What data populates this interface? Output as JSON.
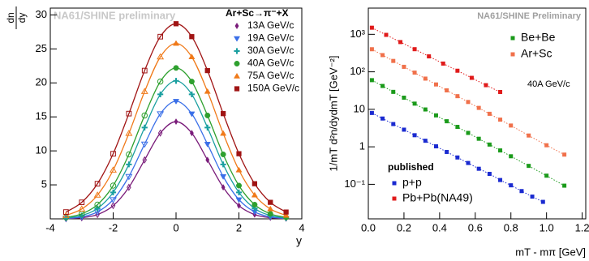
{
  "chart_data": [
    {
      "type": "line",
      "watermark": "NA61/SHINE preliminary",
      "legend_title": "Ar+Sc→π⁻+X",
      "y_label_top": "dn",
      "y_label_bottom": "dy",
      "x_label": "y",
      "x": [
        -3.5,
        -3,
        -2.5,
        -2,
        -1.5,
        -1,
        -0.5,
        0,
        0.5,
        1,
        1.5,
        2,
        2.5,
        3,
        3.5
      ],
      "xlim": [
        -4,
        4
      ],
      "xticks": [
        -4,
        -2,
        0,
        2,
        4
      ],
      "ylim": [
        0,
        31
      ],
      "yticks": [
        5,
        10,
        15,
        20,
        25,
        30
      ],
      "hollow_below_x": 0,
      "series": [
        {
          "name": "13A GeV/c",
          "color": "#7a1c7a",
          "marker": "diamond",
          "values": [
            0.03,
            0.16,
            0.63,
            1.94,
            4.64,
            8.67,
            12.62,
            14.3,
            12.62,
            8.67,
            4.64,
            1.94,
            0.63,
            0.16,
            0.03
          ]
        },
        {
          "name": "19A GeV/c",
          "color": "#3a6fe8",
          "marker": "tri-down",
          "values": [
            0.07,
            0.29,
            1.02,
            2.82,
            6.23,
            10.99,
            15.45,
            17.3,
            15.45,
            10.99,
            6.23,
            2.82,
            1.02,
            0.29,
            0.07
          ]
        },
        {
          "name": "30A GeV/c",
          "color": "#1a9fa0",
          "marker": "cross",
          "values": [
            0.13,
            0.49,
            1.53,
            3.89,
            8.01,
            13.43,
            18.31,
            20.3,
            18.31,
            13.43,
            8.01,
            3.89,
            1.53,
            0.49,
            0.13
          ]
        },
        {
          "name": "40A GeV/c",
          "color": "#2ea02e",
          "marker": "circle",
          "values": [
            0.22,
            0.74,
            2.09,
            4.89,
            9.48,
            15.21,
            20.2,
            22.2,
            20.2,
            15.21,
            9.48,
            4.89,
            2.09,
            0.74,
            0.22
          ]
        },
        {
          "name": "75A GeV/c",
          "color": "#f07a1a",
          "marker": "tri-up",
          "values": [
            0.51,
            1.45,
            3.49,
            7.17,
            12.56,
            18.73,
            23.82,
            25.8,
            23.82,
            18.73,
            12.56,
            7.17,
            3.49,
            1.45,
            0.51
          ]
        },
        {
          "name": "150A GeV/c",
          "color": "#a01414",
          "marker": "square",
          "values": [
            1.0,
            2.43,
            5.17,
            9.58,
            15.48,
            21.81,
            26.8,
            28.7,
            26.8,
            21.81,
            15.48,
            9.58,
            5.17,
            2.43,
            1.0
          ]
        }
      ]
    },
    {
      "type": "scatter",
      "log_y": true,
      "watermark": "NA61/SHINE Preliminary",
      "annotation": "40A GeV/c",
      "group_label": "published",
      "y_label": "1/mT d²n/dydmT [GeV⁻²]",
      "x_label": "mT - mπ [GeV]",
      "xlim": [
        0,
        1.22
      ],
      "xticks": [
        {
          "value": 0,
          "label": "0.0"
        },
        0.2,
        0.4,
        0.6,
        0.8,
        {
          "value": 1,
          "label": "1.0"
        },
        1.2
      ],
      "ylim": [
        0.012,
        5000
      ],
      "yticks": [
        {
          "value": 0.1,
          "label": "10⁻¹"
        },
        1,
        10,
        {
          "value": 100,
          "label": "10²"
        },
        {
          "value": 1000,
          "label": "10³"
        }
      ],
      "series": [
        {
          "name": "Be+Be",
          "color": "#1a9a1a",
          "x": [
            0.02,
            0.08,
            0.14,
            0.2,
            0.26,
            0.32,
            0.38,
            0.44,
            0.5,
            0.56,
            0.62,
            0.68,
            0.74,
            0.8,
            0.9,
            1.0,
            1.1
          ],
          "values": [
            60,
            41.9,
            29.2,
            20.4,
            14.2,
            9.9,
            6.9,
            4.8,
            3.4,
            2.35,
            1.64,
            1.15,
            0.8,
            0.56,
            0.31,
            0.17,
            0.092
          ]
        },
        {
          "name": "Ar+Sc",
          "color": "#f0704a",
          "x": [
            0.02,
            0.08,
            0.14,
            0.2,
            0.26,
            0.32,
            0.38,
            0.44,
            0.5,
            0.56,
            0.62,
            0.68,
            0.74,
            0.8,
            0.9,
            1.0,
            1.1
          ],
          "values": [
            400,
            279,
            195,
            136,
            95,
            66,
            46,
            32,
            22.4,
            15.7,
            10.9,
            7.6,
            5.3,
            3.7,
            2.0,
            1.1,
            0.62
          ]
        },
        {
          "name": "p+p",
          "color": "#1a2ad0",
          "x": [
            0.02,
            0.08,
            0.14,
            0.2,
            0.26,
            0.32,
            0.38,
            0.44,
            0.5,
            0.56,
            0.62,
            0.68,
            0.74,
            0.8,
            0.86,
            0.92,
            0.98
          ],
          "values": [
            8,
            5.68,
            4.04,
            2.87,
            2.04,
            1.45,
            1.03,
            0.73,
            0.52,
            0.37,
            0.26,
            0.19,
            0.13,
            0.094,
            0.066,
            0.047,
            0.034
          ]
        },
        {
          "name": "Pb+Pb(NA49)",
          "color": "#e01a1a",
          "x": [
            0.02,
            0.1,
            0.18,
            0.26,
            0.34,
            0.42,
            0.5,
            0.58,
            0.66,
            0.74
          ],
          "values": [
            1500,
            966,
            622,
            401,
            258,
            166,
            107,
            69,
            44,
            29
          ]
        }
      ]
    }
  ]
}
